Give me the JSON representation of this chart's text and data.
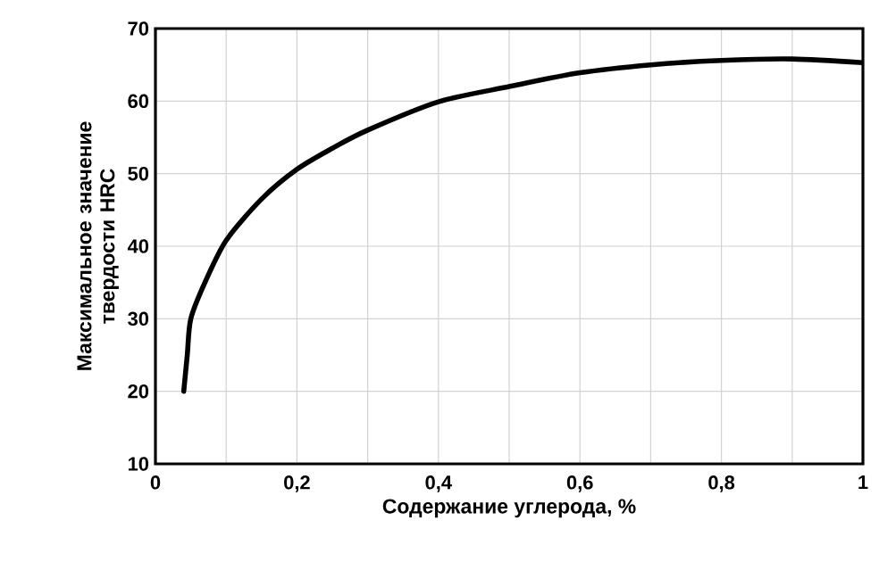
{
  "chart_data": {
    "type": "line",
    "xlabel": "Содержание углерода, %",
    "ylabel": "Максимальное значение твердости HRC",
    "x": [
      0.04,
      0.045,
      0.05,
      0.07,
      0.1,
      0.15,
      0.2,
      0.25,
      0.3,
      0.4,
      0.5,
      0.6,
      0.7,
      0.8,
      0.9,
      1.0
    ],
    "series": [
      {
        "color": "#000000",
        "values": [
          20,
          25,
          30,
          35,
          40.8,
          46.5,
          50.6,
          53.5,
          56,
          59.9,
          62,
          63.9,
          65,
          65.6,
          65.8,
          65.3
        ]
      }
    ],
    "xlim": [
      0,
      1
    ],
    "ylim": [
      10,
      70
    ],
    "xticks": [
      0,
      {
        "value": 0.1,
        "label": null
      },
      {
        "value": 0.2,
        "label": "0,2"
      },
      {
        "value": 0.3,
        "label": null
      },
      {
        "value": 0.4,
        "label": "0,4"
      },
      {
        "value": 0.5,
        "label": null
      },
      {
        "value": 0.6,
        "label": "0,6"
      },
      {
        "value": 0.7,
        "label": null
      },
      {
        "value": 0.8,
        "label": "0,8"
      },
      {
        "value": 0.9,
        "label": null
      },
      1
    ],
    "yticks": [
      10,
      20,
      30,
      40,
      50,
      60,
      70
    ],
    "grid": true,
    "marker": "none",
    "line_style": "solid"
  }
}
